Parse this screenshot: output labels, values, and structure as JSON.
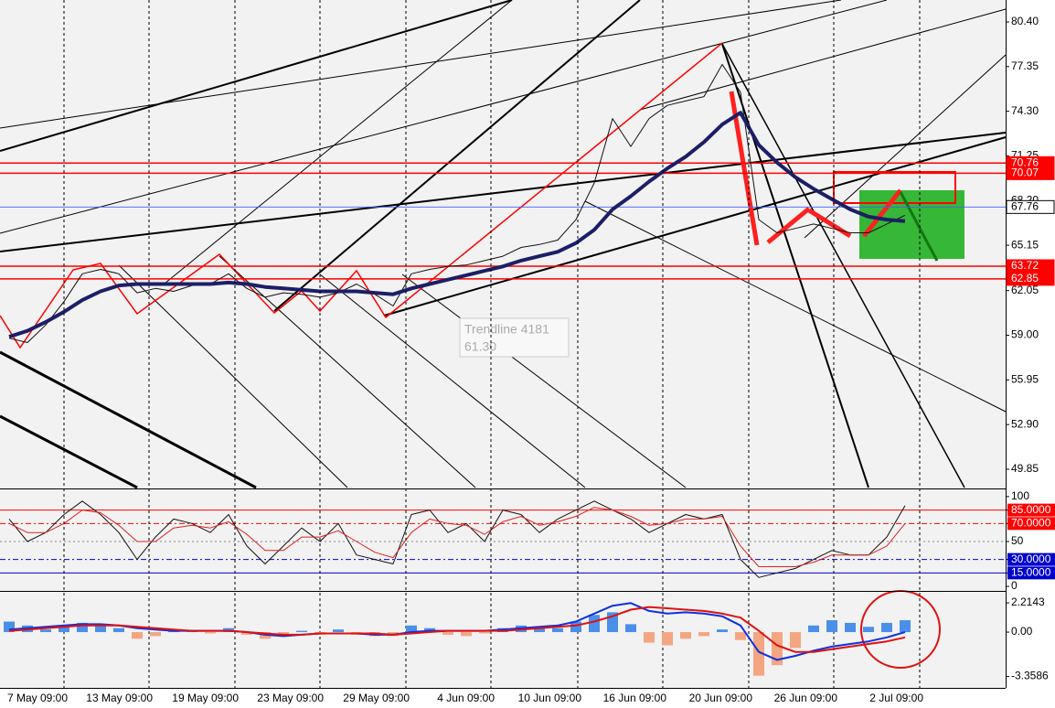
{
  "chart_data": [
    {
      "type": "line",
      "x": [
        0,
        1,
        2,
        3,
        4,
        5,
        6,
        7,
        8,
        9,
        10,
        11,
        12,
        13,
        14,
        15,
        16,
        17,
        18,
        19,
        20,
        21,
        22,
        23,
        24,
        25,
        26,
        27,
        28,
        29,
        30,
        31,
        32,
        33,
        34,
        35,
        36,
        37,
        38,
        39,
        40,
        41,
        42,
        43,
        44,
        45,
        46,
        47,
        48,
        49
      ],
      "xlim": [
        -0.5,
        54.5
      ],
      "ylim": [
        48.6,
        81.9
      ],
      "yticks": [
        {
          "value": 80.4,
          "label": "80.40"
        },
        77.35,
        {
          "value": 74.3,
          "label": "74.30"
        },
        71.25,
        {
          "value": 68.2,
          "label": "68.20"
        },
        65.15,
        62.05,
        {
          "value": 59,
          "label": "59.00"
        },
        55.95,
        {
          "value": 52.9,
          "label": "52.90"
        },
        49.85
      ],
      "series": [
        {
          "color": "#111111",
          "width": 1,
          "values": [
            58.8,
            58.5,
            59.7,
            61.3,
            63.2,
            63.5,
            63.2,
            61.9,
            62.2,
            62.0,
            62.4,
            62.5,
            63.2,
            62.2,
            61.6,
            61.9,
            61.8,
            61.6,
            61.9,
            62.5,
            61.8,
            61.0,
            63.2,
            63.5,
            63.7,
            63.8,
            64.1,
            64.4,
            65.0,
            65.2,
            65.5,
            66.9,
            69.4,
            73.8,
            71.9,
            73.8,
            74.7,
            75.0,
            75.3,
            77.5,
            75.6,
            66.9,
            66.0,
            66.3,
            66.6,
            66.3,
            66.0,
            66.0,
            66.6,
            67.2
          ]
        },
        {
          "color": "#1c1f66",
          "width": 4,
          "values": [
            58.9,
            59.3,
            59.9,
            60.6,
            61.4,
            62.0,
            62.4,
            62.5,
            62.5,
            62.5,
            62.5,
            62.5,
            62.6,
            62.5,
            62.3,
            62.2,
            62.1,
            62.0,
            62.0,
            62.0,
            61.9,
            61.8,
            62.2,
            62.5,
            62.8,
            63.1,
            63.4,
            63.7,
            64.1,
            64.4,
            64.7,
            65.3,
            66.2,
            67.6,
            68.5,
            69.5,
            70.4,
            71.2,
            72.2,
            73.4,
            74.2,
            72.0,
            70.8,
            69.8,
            69.0,
            68.3,
            67.6,
            67.1,
            66.9,
            66.8
          ]
        }
      ],
      "levels": [
        {
          "value": 70.76,
          "color": "#ff0000",
          "box": "#ff0000"
        },
        {
          "value": 70.07,
          "color": "#ff0000",
          "box": "#ff0000"
        },
        {
          "value": 63.72,
          "color": "#ff0000",
          "box": "#ff0000"
        },
        {
          "value": 62.85,
          "color": "#ff0000",
          "box": "#ff0000"
        },
        {
          "value": 67.76,
          "color": "#4060ff",
          "box": "#ffffff"
        }
      ],
      "annotations": [
        "Trendline 4181",
        "61.30"
      ]
    },
    {
      "type": "line",
      "x": [
        0,
        1,
        2,
        3,
        4,
        5,
        6,
        7,
        8,
        9,
        10,
        11,
        12,
        13,
        14,
        15,
        16,
        17,
        18,
        19,
        20,
        21,
        22,
        23,
        24,
        25,
        26,
        27,
        28,
        29,
        30,
        31,
        32,
        33,
        34,
        35,
        36,
        37,
        38,
        39,
        40,
        41,
        42,
        43,
        44,
        45,
        46,
        47,
        48,
        49
      ],
      "xlim": [
        -0.5,
        54.5
      ],
      "ylim": [
        -4,
        107
      ],
      "yticks": [
        100,
        {
          "value": 85,
          "label": "85.0000"
        },
        {
          "value": 70,
          "label": "70.0000"
        },
        50,
        {
          "value": 30,
          "label": "30.0000"
        },
        {
          "value": 15,
          "label": "15.0000"
        },
        0
      ],
      "tick_colors": [
        "#000000",
        "#ff0000",
        "#ff0000",
        "#888888",
        "#0000cc",
        "#0000cc",
        "#000000"
      ],
      "tick_styles": [
        "none",
        "solid",
        "dashdot",
        "dot",
        "dashdot",
        "solid",
        "none"
      ],
      "series": [
        {
          "color": "#111111",
          "width": 1,
          "values": [
            75,
            50,
            60,
            80,
            95,
            80,
            60,
            30,
            55,
            75,
            70,
            60,
            80,
            45,
            25,
            45,
            65,
            50,
            70,
            35,
            30,
            25,
            80,
            85,
            60,
            70,
            50,
            85,
            80,
            60,
            75,
            85,
            95,
            85,
            75,
            60,
            70,
            80,
            75,
            80,
            30,
            10,
            15,
            20,
            30,
            40,
            35,
            35,
            55,
            90
          ]
        },
        {
          "color": "#e02020",
          "width": 1,
          "values": [
            70,
            60,
            60,
            70,
            85,
            82,
            68,
            50,
            50,
            65,
            68,
            65,
            72,
            58,
            40,
            40,
            55,
            55,
            62,
            50,
            38,
            32,
            60,
            75,
            70,
            68,
            58,
            72,
            78,
            68,
            72,
            78,
            88,
            85,
            78,
            68,
            70,
            75,
            75,
            78,
            45,
            22,
            22,
            22,
            27,
            35,
            35,
            35,
            45,
            70
          ]
        }
      ]
    },
    {
      "type": "bar",
      "x": [
        0,
        1,
        2,
        3,
        4,
        5,
        6,
        7,
        8,
        9,
        10,
        11,
        12,
        13,
        14,
        15,
        16,
        17,
        18,
        19,
        20,
        21,
        22,
        23,
        24,
        25,
        26,
        27,
        28,
        29,
        30,
        31,
        32,
        33,
        34,
        35,
        36,
        37,
        38,
        39,
        40,
        41,
        42,
        43,
        44,
        45,
        46,
        47,
        48,
        49
      ],
      "xlim": [
        -0.5,
        54.5
      ],
      "ylim": [
        -4.22,
        2.98
      ],
      "yticks": [
        2.2143,
        {
          "value": 0,
          "label": "0.00"
        },
        -3.3586
      ],
      "xticks": [
        {
          "value": 3,
          "label": "7 May 09:00"
        },
        {
          "value": 7.65,
          "label": "13 May 09:00"
        },
        {
          "value": 12.35,
          "label": "19 May 09:00"
        },
        {
          "value": 17,
          "label": "23 May 09:00"
        },
        {
          "value": 21.7,
          "label": "29 May 09:00"
        },
        {
          "value": 26.35,
          "label": "4 Jun 09:00"
        },
        {
          "value": 31.1,
          "label": "10 Jun 09:00"
        },
        {
          "value": 35.75,
          "label": "16 Jun 09:00"
        },
        {
          "value": 40.45,
          "label": "20 Jun 09:00"
        },
        {
          "value": 45.1,
          "label": "26 Jun 09:00"
        },
        {
          "value": 49.8,
          "label": "2 Jul 09:00"
        }
      ],
      "colors": {
        "positive": "#4a90e8",
        "negative": "#f4a582"
      },
      "values": [
        0.8,
        0.5,
        0.2,
        0.4,
        0.7,
        0.6,
        0.3,
        -0.5,
        -0.3,
        0.2,
        0.1,
        -0.1,
        0.3,
        -0.2,
        -0.5,
        -0.3,
        0.1,
        -0.2,
        0.2,
        -0.2,
        -0.3,
        -0.3,
        0.5,
        0.3,
        -0.2,
        -0.3,
        -0.1,
        0.3,
        0.5,
        0.4,
        0.3,
        0.8,
        1.3,
        1.5,
        0.6,
        -0.8,
        -1.0,
        -0.5,
        -0.3,
        0.2,
        -0.6,
        -3.3,
        -2.5,
        -1.2,
        0.5,
        0.9,
        0.7,
        0.4,
        0.7,
        0.9
      ],
      "series": [
        {
          "color": "#1030e0",
          "width": 2,
          "values": [
            0.2,
            0.3,
            0.4,
            0.5,
            0.6,
            0.6,
            0.5,
            0.3,
            0.2,
            0.1,
            0.1,
            0.1,
            0.1,
            0,
            -0.2,
            -0.3,
            -0.2,
            -0.1,
            -0.1,
            -0.1,
            -0.2,
            -0.2,
            0,
            0.1,
            0.1,
            0.1,
            0.1,
            0.2,
            0.3,
            0.4,
            0.5,
            0.8,
            1.4,
            2.0,
            2.2,
            1.6,
            1.4,
            1.5,
            1.4,
            1.2,
            0.5,
            -1.5,
            -2.1,
            -1.8,
            -1.4,
            -1.1,
            -0.9,
            -0.7,
            -0.4,
            0
          ]
        },
        {
          "color": "#e01010",
          "width": 2,
          "values": [
            0.1,
            0.2,
            0.3,
            0.4,
            0.5,
            0.5,
            0.5,
            0.4,
            0.3,
            0.2,
            0.1,
            0.1,
            0.1,
            0,
            -0.1,
            -0.2,
            -0.2,
            -0.1,
            -0.1,
            -0.1,
            -0.1,
            -0.2,
            -0.1,
            0,
            0.1,
            0.1,
            0.1,
            0.1,
            0.2,
            0.3,
            0.4,
            0.5,
            0.8,
            1.2,
            1.7,
            1.9,
            1.8,
            1.7,
            1.6,
            1.4,
            1.1,
            0.1,
            -1.0,
            -1.5,
            -1.5,
            -1.3,
            -1.1,
            -0.9,
            -0.7,
            -0.4
          ]
        }
      ]
    }
  ]
}
